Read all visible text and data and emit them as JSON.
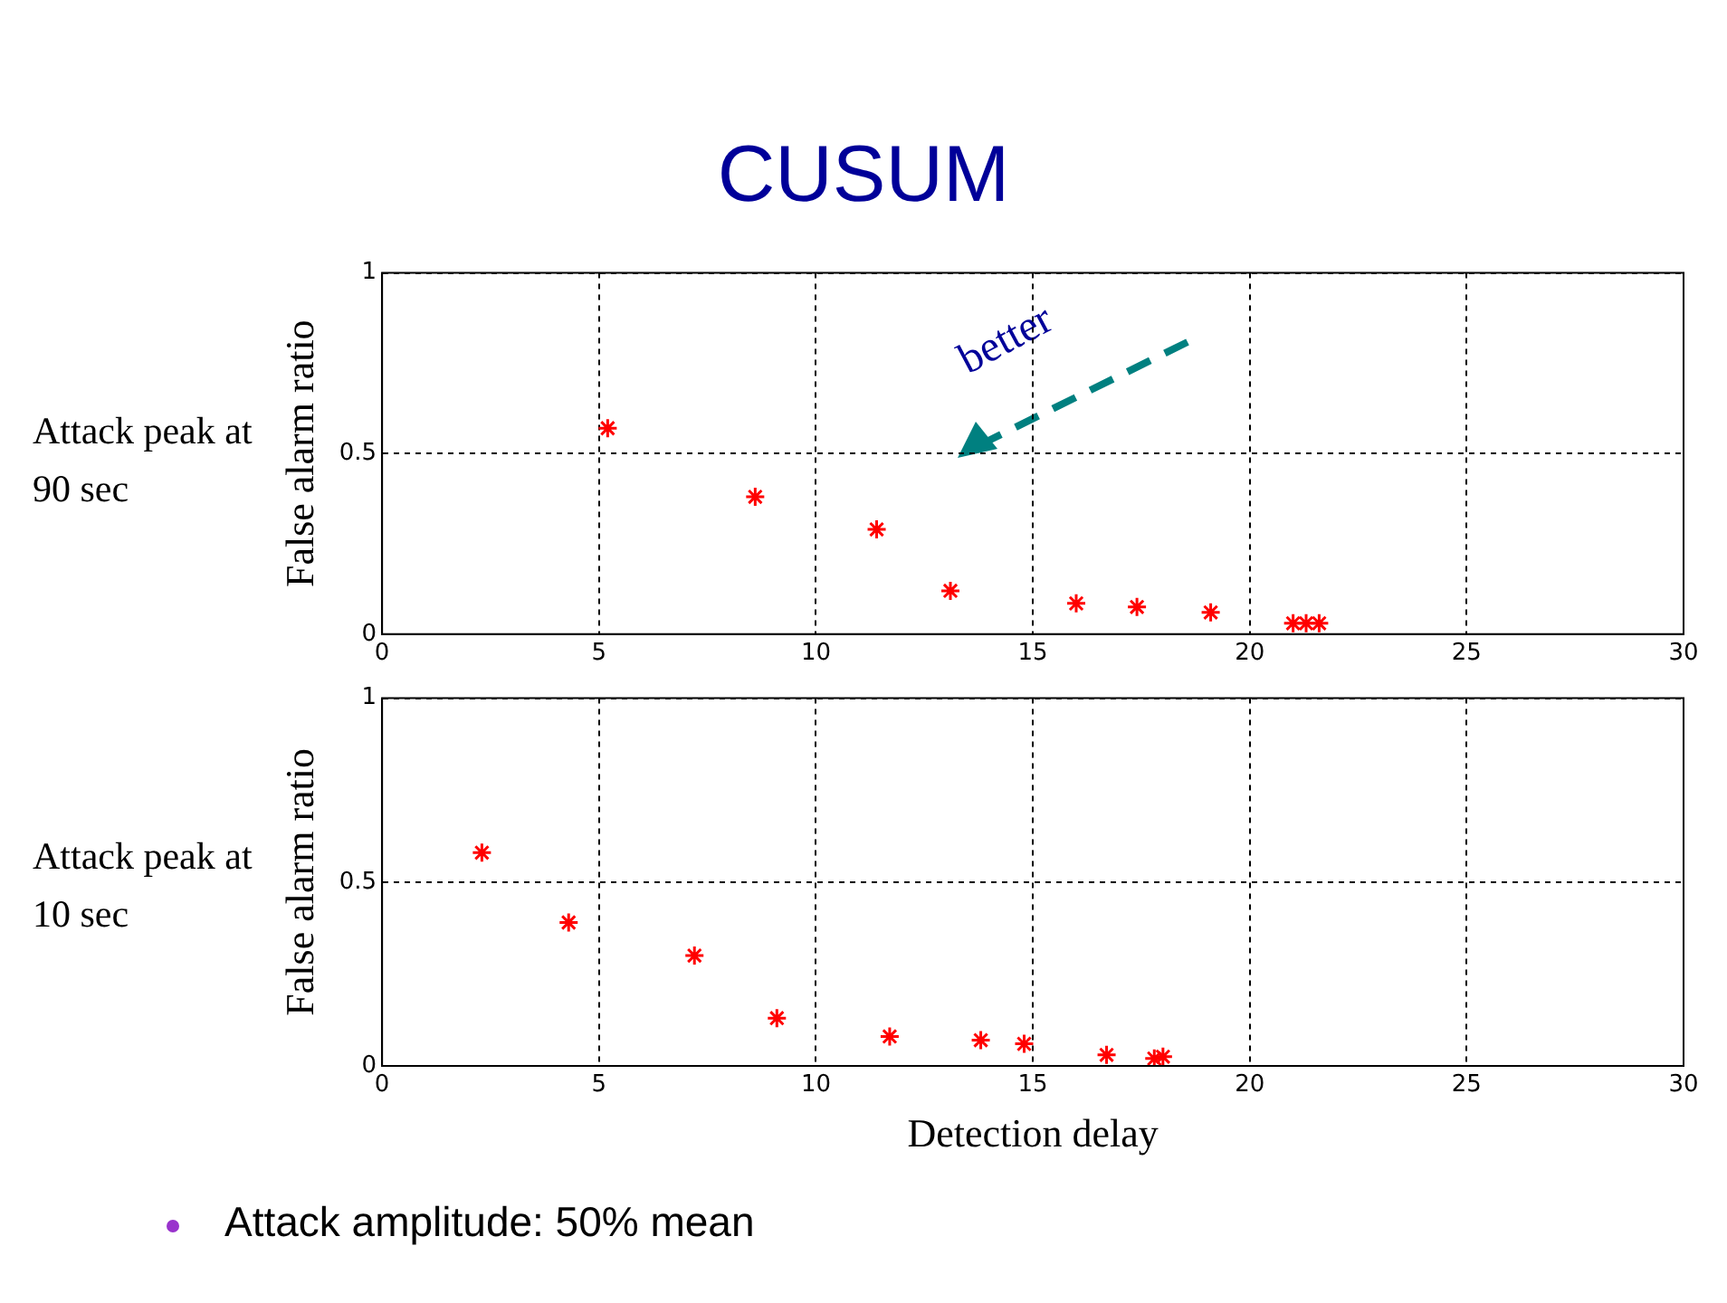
{
  "chart_data": [
    {
      "type": "scatter",
      "title": "CUSUM",
      "ylabel": "False alarm ratio",
      "annotations": [
        "Attack peak at 90 sec",
        "better"
      ],
      "x": [
        5.2,
        8.6,
        11.4,
        13.1,
        16.0,
        17.4,
        19.1,
        21.0,
        21.3,
        21.6
      ],
      "series": [
        {
          "color": "#ff0000",
          "values": [
            0.57,
            0.38,
            0.29,
            0.12,
            0.085,
            0.075,
            0.06,
            0.03,
            0.03,
            0.03
          ]
        }
      ],
      "xlim": [
        0,
        30
      ],
      "xticks": [
        0,
        5,
        10,
        15,
        20,
        25,
        30
      ],
      "ylim": [
        0,
        1
      ],
      "yticks": [
        0,
        0.5,
        1
      ],
      "grid": true,
      "marker": "cross",
      "legend": false
    },
    {
      "type": "scatter",
      "xlabel": "Detection delay",
      "ylabel": "False alarm ratio",
      "annotations": [
        "Attack peak at 10 sec",
        "Attack amplitude: 50% mean"
      ],
      "x": [
        2.3,
        4.3,
        7.2,
        9.1,
        11.7,
        13.8,
        14.8,
        16.7,
        17.8,
        18.0
      ],
      "series": [
        {
          "color": "#ff0000",
          "values": [
            0.58,
            0.39,
            0.3,
            0.13,
            0.08,
            0.07,
            0.06,
            0.03,
            0.02,
            0.025
          ]
        }
      ],
      "xlim": [
        0,
        30
      ],
      "xticks": [
        0,
        5,
        10,
        15,
        20,
        25,
        30
      ],
      "ylim": [
        0,
        1
      ],
      "yticks": [
        0,
        0.5,
        1
      ],
      "grid": true,
      "marker": "cross",
      "legend": false
    }
  ]
}
